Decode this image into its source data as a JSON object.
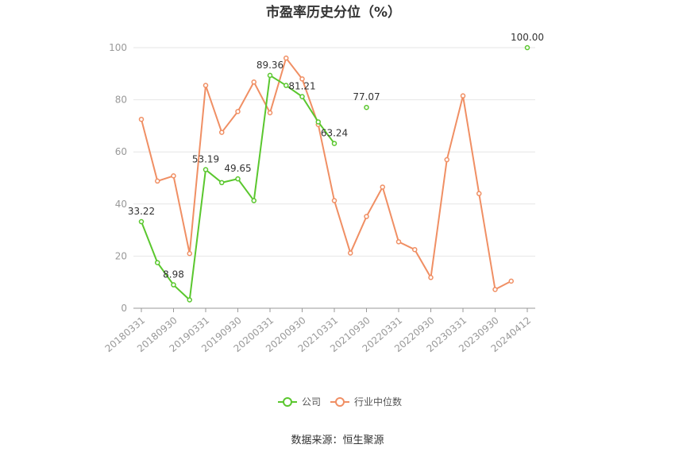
{
  "chart_data": {
    "type": "line",
    "title": "市盈率历史分位（%）",
    "source": "数据来源：恒生聚源",
    "ylim": [
      0,
      100
    ],
    "yticks": [
      "0",
      "20",
      "40",
      "60",
      "80",
      "100"
    ],
    "xticks": [
      "20180331",
      "20180930",
      "20190331",
      "20190930",
      "20200331",
      "20200930",
      "20210331",
      "20210930",
      "20220331",
      "20220930",
      "20230331",
      "20230930",
      "20240412"
    ],
    "grid": true,
    "legend_position": "bottom",
    "series": [
      {
        "name": "公司",
        "color": "#5ac72e",
        "values": [
          33.22,
          17.5,
          8.98,
          3.2,
          53.19,
          48.2,
          49.65,
          41.3,
          89.36,
          85.5,
          81.21,
          71.5,
          63.24,
          null,
          77.07,
          null,
          null,
          null,
          null,
          null,
          null,
          null,
          null,
          null,
          100.0
        ],
        "labels": [
          {
            "i": 0,
            "text": "33.22"
          },
          {
            "i": 2,
            "text": "8.98"
          },
          {
            "i": 4,
            "text": "53.19"
          },
          {
            "i": 6,
            "text": "49.65"
          },
          {
            "i": 8,
            "text": "89.36"
          },
          {
            "i": 10,
            "text": "81.21"
          },
          {
            "i": 12,
            "text": "63.24"
          },
          {
            "i": 14,
            "text": "77.07"
          },
          {
            "i": 24,
            "text": "100.00"
          }
        ]
      },
      {
        "name": "行业中位数",
        "color": "#f08f64",
        "values": [
          72.5,
          48.8,
          50.8,
          21.0,
          85.5,
          67.5,
          75.5,
          86.8,
          75.0,
          96.0,
          88.0,
          70.5,
          41.3,
          21.2,
          35.2,
          46.5,
          25.5,
          22.5,
          11.8,
          57.0,
          81.5,
          44.0,
          7.2,
          10.4,
          null
        ]
      }
    ]
  }
}
